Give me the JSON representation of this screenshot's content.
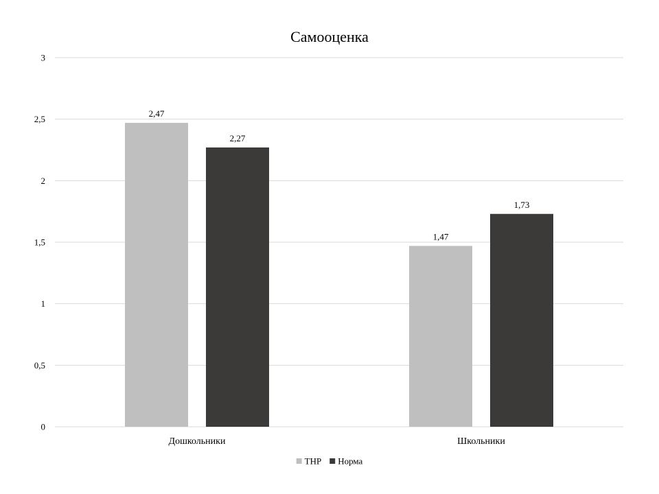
{
  "chart_data": {
    "type": "bar",
    "title": "Самооценка",
    "xlabel": "",
    "ylabel": "",
    "categories": [
      "Дошкольники",
      "Школьники"
    ],
    "series": [
      {
        "name": "ТНР",
        "values": [
          2.47,
          1.47
        ],
        "labels": [
          "2,47",
          "1,47"
        ],
        "color": "#bfbfbf"
      },
      {
        "name": "Норма",
        "values": [
          2.27,
          1.73
        ],
        "labels": [
          "2,27",
          "1,73"
        ],
        "color": "#3b3a39"
      }
    ],
    "ylim": [
      0,
      3
    ],
    "yticks": [
      0,
      0.5,
      1,
      1.5,
      2,
      2.5,
      3
    ],
    "ytick_labels": [
      "0",
      "0,5",
      "1",
      "1,5",
      "2",
      "2,5",
      "3"
    ],
    "grid": true,
    "legend_position": "bottom"
  }
}
